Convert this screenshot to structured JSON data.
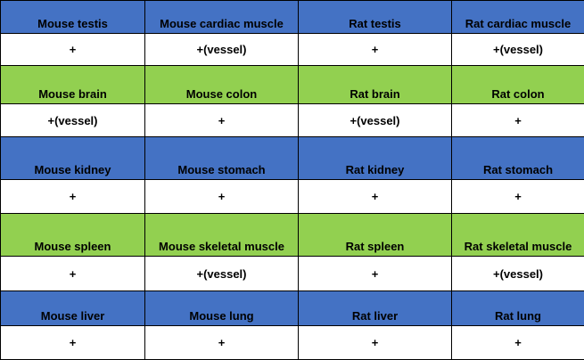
{
  "colors": {
    "blue": "#4472c4",
    "green": "#92d050",
    "white": "#ffffff"
  },
  "rows": [
    {
      "color": "blue",
      "labels": [
        "Mouse testis",
        "Mouse cardiac muscle",
        "Rat testis",
        "Rat cardiac muscle"
      ],
      "values": [
        "+",
        "+(vessel)",
        "+",
        "+(vessel)"
      ]
    },
    {
      "color": "green",
      "labels": [
        "Mouse brain",
        "Mouse colon",
        "Rat brain",
        "Rat colon"
      ],
      "values": [
        "+(vessel)",
        "+",
        "+(vessel)",
        "+"
      ]
    },
    {
      "color": "blue",
      "labels": [
        "Mouse kidney",
        "Mouse stomach",
        "Rat kidney",
        "Rat stomach"
      ],
      "values": [
        "+",
        "+",
        "+",
        "+"
      ]
    },
    {
      "color": "green",
      "labels": [
        "Mouse spleen",
        "Mouse skeletal muscle",
        "Rat spleen",
        "Rat skeletal muscle"
      ],
      "values": [
        "+",
        "+(vessel)",
        "+",
        "+(vessel)"
      ]
    },
    {
      "color": "blue",
      "labels": [
        "Mouse liver",
        "Mouse lung",
        "Rat liver",
        "Rat lung"
      ],
      "values": [
        "+",
        "+",
        "+",
        "+"
      ]
    }
  ]
}
